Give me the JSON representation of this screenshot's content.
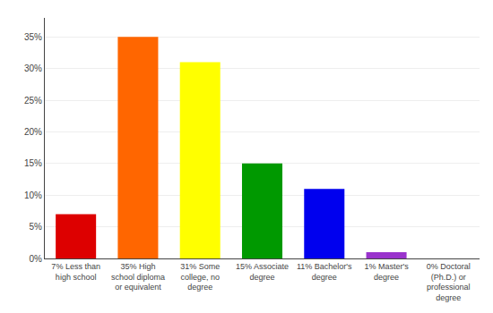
{
  "chart_data": {
    "type": "bar",
    "categories": [
      "7% Less than\nhigh school",
      "35% High\nschool diploma\nor equivalent",
      "31% Some\ncollege, no\ndegree",
      "15% Associate\ndegree",
      "11% Bachelor's\ndegree",
      "1% Master's\ndegree",
      "0% Doctoral\n(Ph.D.) or\nprofessional\ndegree"
    ],
    "values": [
      7,
      35,
      31,
      15,
      11,
      1,
      0
    ],
    "colors": [
      "#dd0000",
      "#ff6600",
      "#ffff00",
      "#009900",
      "#0000ee",
      "#9933cc",
      "#ff00ff"
    ],
    "ylim": [
      0,
      38
    ],
    "yticks": [
      {
        "value": 0,
        "label": "0%"
      },
      {
        "value": 5,
        "label": "5%"
      },
      {
        "value": 10,
        "label": "10%"
      },
      {
        "value": 15,
        "label": "15%"
      },
      {
        "value": 20,
        "label": "20%"
      },
      {
        "value": 25,
        "label": "25%"
      },
      {
        "value": 30,
        "label": "30%"
      },
      {
        "value": 35,
        "label": "35%"
      }
    ],
    "grid": true
  }
}
